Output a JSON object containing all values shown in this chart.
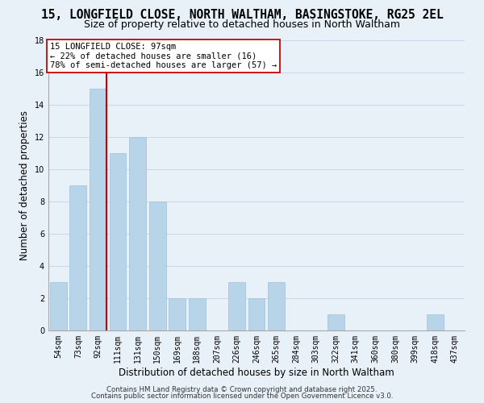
{
  "title": "15, LONGFIELD CLOSE, NORTH WALTHAM, BASINGSTOKE, RG25 2EL",
  "subtitle": "Size of property relative to detached houses in North Waltham",
  "xlabel": "Distribution of detached houses by size in North Waltham",
  "ylabel": "Number of detached properties",
  "bar_color": "#b8d4e8",
  "bar_edge_color": "#a0c0dc",
  "grid_color": "#c8d8ea",
  "background_color": "#e8f0f8",
  "categories": [
    "54sqm",
    "73sqm",
    "92sqm",
    "111sqm",
    "131sqm",
    "150sqm",
    "169sqm",
    "188sqm",
    "207sqm",
    "226sqm",
    "246sqm",
    "265sqm",
    "284sqm",
    "303sqm",
    "322sqm",
    "341sqm",
    "360sqm",
    "380sqm",
    "399sqm",
    "418sqm",
    "437sqm"
  ],
  "values": [
    3,
    9,
    15,
    11,
    12,
    8,
    2,
    2,
    0,
    3,
    2,
    3,
    0,
    0,
    1,
    0,
    0,
    0,
    0,
    1,
    0
  ],
  "vline_index": 2,
  "vline_color": "#cc0000",
  "annotation_line1": "15 LONGFIELD CLOSE: 97sqm",
  "annotation_line2": "← 22% of detached houses are smaller (16)",
  "annotation_line3": "78% of semi-detached houses are larger (57) →",
  "annotation_box_edge": "#cc0000",
  "annotation_box_face": "#ffffff",
  "ylim": [
    0,
    18
  ],
  "yticks": [
    0,
    2,
    4,
    6,
    8,
    10,
    12,
    14,
    16,
    18
  ],
  "footer_line1": "Contains HM Land Registry data © Crown copyright and database right 2025.",
  "footer_line2": "Contains public sector information licensed under the Open Government Licence v3.0.",
  "title_fontsize": 10.5,
  "subtitle_fontsize": 9,
  "xlabel_fontsize": 8.5,
  "ylabel_fontsize": 8.5,
  "tick_fontsize": 7,
  "annotation_fontsize": 7.5,
  "footer_fontsize": 6.2
}
